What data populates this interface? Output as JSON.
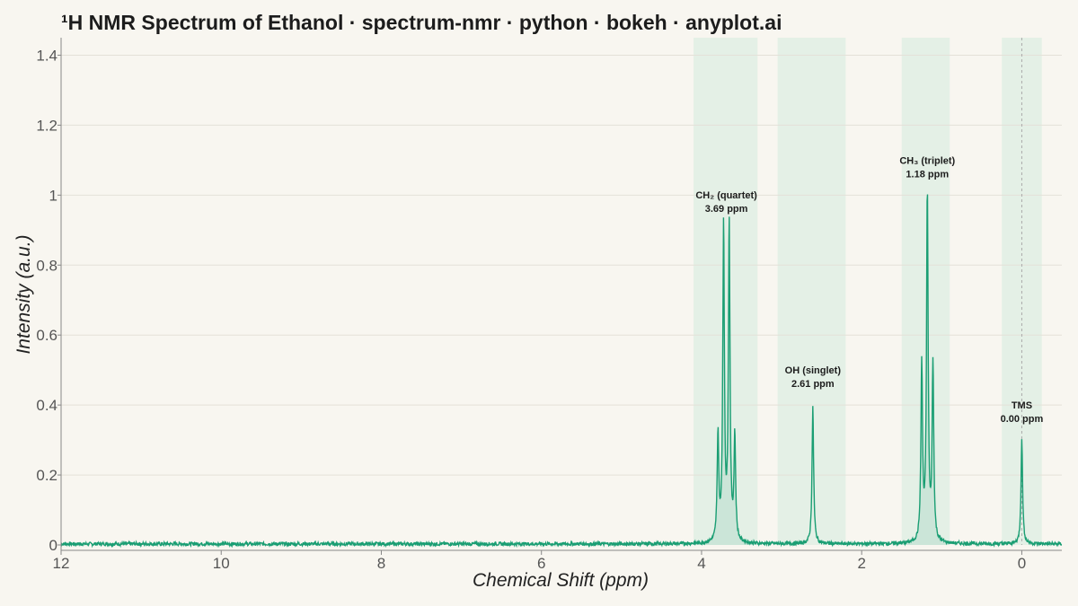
{
  "chart_data": {
    "type": "line",
    "title": "¹H NMR Spectrum of Ethanol · spectrum-nmr · python · bokeh · anyplot.ai",
    "xlabel": "Chemical Shift (ppm)",
    "ylabel": "Intensity (a.u.)",
    "xlim": [
      12,
      -0.5
    ],
    "ylim": [
      0,
      1.45
    ],
    "x_reversed": true,
    "xticks": [
      12,
      10,
      8,
      6,
      4,
      2,
      0
    ],
    "xtick_labels": [
      "12",
      "10",
      "8",
      "6",
      "4",
      "2",
      "0"
    ],
    "yticks": [
      0,
      0.2,
      0.4,
      0.6,
      0.8,
      1.0,
      1.2,
      1.4
    ],
    "ytick_labels": [
      "0",
      "0.2",
      "0.4",
      "0.6",
      "0.8",
      "1",
      "1.2",
      "1.4"
    ],
    "grid": true,
    "line_color": "#1a9e73",
    "region_color": "#d7ece0",
    "reference_line_color": "#aaaaaa",
    "regions": [
      {
        "from": 4.1,
        "to": 3.3
      },
      {
        "from": 3.05,
        "to": 2.2
      },
      {
        "from": 1.5,
        "to": 0.9
      },
      {
        "from": 0.25,
        "to": -0.25
      }
    ],
    "reference_line_ppm": 0.0,
    "peaks": [
      {
        "center": 3.795,
        "height": 0.305
      },
      {
        "center": 3.725,
        "height": 0.9
      },
      {
        "center": 3.655,
        "height": 0.905
      },
      {
        "center": 3.585,
        "height": 0.3
      },
      {
        "center": 2.61,
        "height": 0.39
      },
      {
        "center": 1.25,
        "height": 0.505
      },
      {
        "center": 1.18,
        "height": 1.0
      },
      {
        "center": 1.11,
        "height": 0.505
      },
      {
        "center": 0.0,
        "height": 0.295
      }
    ],
    "annotations": [
      {
        "line1": "CH₂ (quartet)",
        "line2": "3.69 ppm",
        "x": 3.69,
        "y": 0.99
      },
      {
        "line1": "OH (singlet)",
        "line2": "2.61 ppm",
        "x": 2.61,
        "y": 0.49
      },
      {
        "line1": "CH₃ (triplet)",
        "line2": "1.18 ppm",
        "x": 1.18,
        "y": 1.09
      },
      {
        "line1": "TMS",
        "line2": "0.00 ppm",
        "x": 0.0,
        "y": 0.39
      }
    ]
  }
}
